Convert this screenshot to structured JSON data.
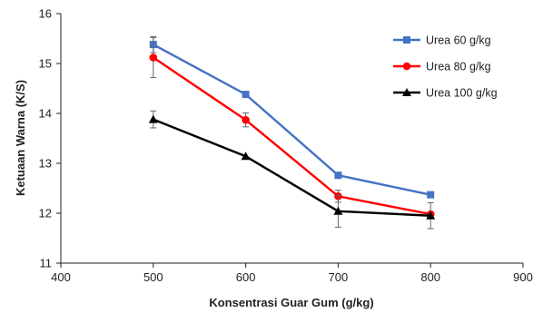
{
  "chart_data": {
    "type": "line",
    "xlabel": "Konsentrasi Guar Gum (g/kg)",
    "ylabel": "Ketuaan Warna (K/S)",
    "xlim": [
      400,
      900
    ],
    "ylim": [
      11,
      16
    ],
    "x_ticks": [
      "400",
      "500",
      "600",
      "700",
      "800",
      "900"
    ],
    "y_ticks": [
      "11",
      "12",
      "13",
      "14",
      "15",
      "16"
    ],
    "grid": false,
    "legend_position": "top-right",
    "x": [
      500,
      600,
      700,
      800
    ],
    "series": [
      {
        "name": "Urea 60 g/kg",
        "color": "#4472C4",
        "marker": "square",
        "values": [
          15.38,
          14.38,
          12.76,
          12.37
        ],
        "error": [
          0.16,
          0.0,
          0.0,
          0.0
        ]
      },
      {
        "name": "Urea 80 g/kg",
        "color": "#FF0000",
        "marker": "circle",
        "values": [
          15.12,
          13.87,
          12.34,
          11.98
        ],
        "error": [
          0.4,
          0.14,
          0.12,
          0.0
        ]
      },
      {
        "name": "Urea 100 g/kg",
        "color": "#000000",
        "marker": "triangle",
        "values": [
          13.88,
          13.14,
          12.04,
          11.95
        ],
        "error": [
          0.17,
          0.0,
          0.32,
          0.26
        ]
      }
    ]
  }
}
